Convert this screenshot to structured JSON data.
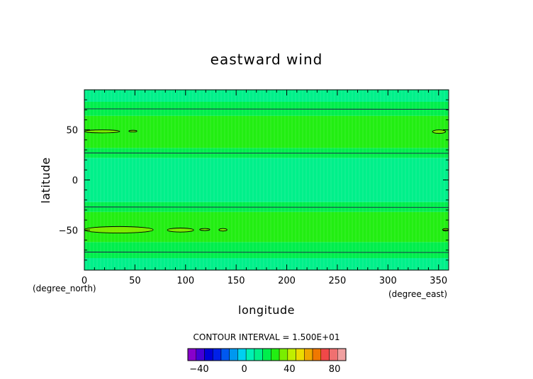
{
  "chart_data": {
    "type": "heatmap",
    "title": "eastward wind",
    "xlabel": "longitude",
    "ylabel": "latitude",
    "x_unit_left": "(degree_north)",
    "x_unit_right": "(degree_east)",
    "xlim": [
      0,
      360
    ],
    "ylim": [
      -90,
      90
    ],
    "x_ticks": [
      0,
      50,
      100,
      150,
      200,
      250,
      300,
      350
    ],
    "y_ticks": [
      50,
      0,
      -50
    ],
    "x_tick_labels": [
      "0",
      "50",
      "100",
      "150",
      "200",
      "250",
      "300",
      "350"
    ],
    "y_tick_labels": [
      "50",
      "0",
      "−50"
    ],
    "contour_interval_text": "CONTOUR INTERVAL = 1.500E+01",
    "bands": [
      {
        "lat_min": -90,
        "lat_max": -78,
        "color": "#00f08a"
      },
      {
        "lat_min": -78,
        "lat_max": -62,
        "color": "#00ee4c"
      },
      {
        "lat_min": -62,
        "lat_max": -32,
        "color": "#22ee12"
      },
      {
        "lat_min": -32,
        "lat_max": -22,
        "color": "#00ee4c"
      },
      {
        "lat_min": -22,
        "lat_max": 22,
        "color": "#00f08a"
      },
      {
        "lat_min": 22,
        "lat_max": 32,
        "color": "#00ee4c"
      },
      {
        "lat_min": 32,
        "lat_max": 64,
        "color": "#22ee12"
      },
      {
        "lat_min": 64,
        "lat_max": 78,
        "color": "#00ee4c"
      },
      {
        "lat_min": 78,
        "lat_max": 90,
        "color": "#00f08a"
      }
    ],
    "contour_lines": [
      {
        "value": 15,
        "lat": 71
      },
      {
        "value": 15,
        "lat": 27
      },
      {
        "value": 15,
        "lat": -27
      },
      {
        "value": 15,
        "lat": -72
      }
    ],
    "contour_cells": [
      {
        "value": 30,
        "lon": [
          0,
          35
        ],
        "lat": [
          47,
          50
        ]
      },
      {
        "value": 30,
        "lon": [
          44,
          52
        ],
        "lat": [
          48,
          49.5
        ]
      },
      {
        "value": 30,
        "lon": [
          344,
          357
        ],
        "lat": [
          46.5,
          50
        ]
      },
      {
        "value": 30,
        "lon": [
          0,
          68
        ],
        "lat": [
          -53,
          -46.5
        ]
      },
      {
        "value": 30,
        "lon": [
          82,
          108
        ],
        "lat": [
          -52,
          -48
        ]
      },
      {
        "value": 30,
        "lon": [
          114,
          124
        ],
        "lat": [
          -50.5,
          -48.5
        ]
      },
      {
        "value": 30,
        "lon": [
          133,
          141
        ],
        "lat": [
          -51,
          -48.5
        ]
      },
      {
        "value": 30,
        "lon": [
          354,
          360
        ],
        "lat": [
          -51,
          -48.5
        ]
      }
    ],
    "colorbar": {
      "colors": [
        "#8800cc",
        "#4400d6",
        "#0000d8",
        "#0020e8",
        "#0058f0",
        "#0098f0",
        "#00d0f0",
        "#00f0b4",
        "#00f08a",
        "#00ee4c",
        "#22ee12",
        "#7aee00",
        "#c0ee00",
        "#ecdc00",
        "#f0a800",
        "#f07800",
        "#f04848",
        "#f07070",
        "#f0a0a0"
      ],
      "min": -50,
      "max": 90,
      "ticks": [
        -40,
        0,
        40,
        80
      ],
      "tick_labels": [
        "−40",
        "0",
        "40",
        "80"
      ]
    }
  }
}
